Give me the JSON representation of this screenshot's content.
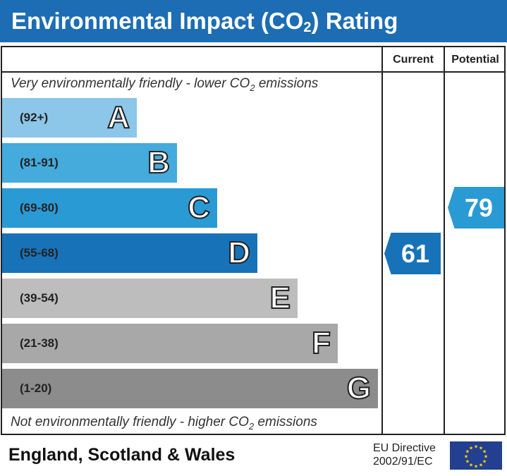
{
  "header": {
    "title_pre": "Environmental Impact (CO",
    "title_sub": "2",
    "title_post": ") Rating"
  },
  "columns": {
    "current": "Current",
    "potential": "Potential"
  },
  "notes": {
    "top_pre": "Very environmentally friendly - lower CO",
    "top_post": " emissions",
    "bottom_pre": "Not environmentally friendly - higher CO",
    "bottom_post": " emissions",
    "sub": "2"
  },
  "chart_data": {
    "type": "bar",
    "bands": [
      {
        "letter": "A",
        "range": "(92+)",
        "color": "#8cc6e8"
      },
      {
        "letter": "B",
        "range": "(81-91)",
        "color": "#45aadc"
      },
      {
        "letter": "C",
        "range": "(69-80)",
        "color": "#2a9ad4"
      },
      {
        "letter": "D",
        "range": "(55-68)",
        "color": "#1872b8"
      },
      {
        "letter": "E",
        "range": "(39-54)",
        "color": "#bdbdbd"
      },
      {
        "letter": "F",
        "range": "(21-38)",
        "color": "#a8a8a8"
      },
      {
        "letter": "G",
        "range": "(1-20)",
        "color": "#8c8c8c"
      }
    ],
    "current": {
      "value": "61",
      "band": "D",
      "color": "#1872b8"
    },
    "potential": {
      "value": "79",
      "band": "C",
      "color": "#2a9ad4"
    }
  },
  "footer": {
    "region": "England, Scotland & Wales",
    "directive_line1": "EU Directive",
    "directive_line2": "2002/91/EC"
  }
}
